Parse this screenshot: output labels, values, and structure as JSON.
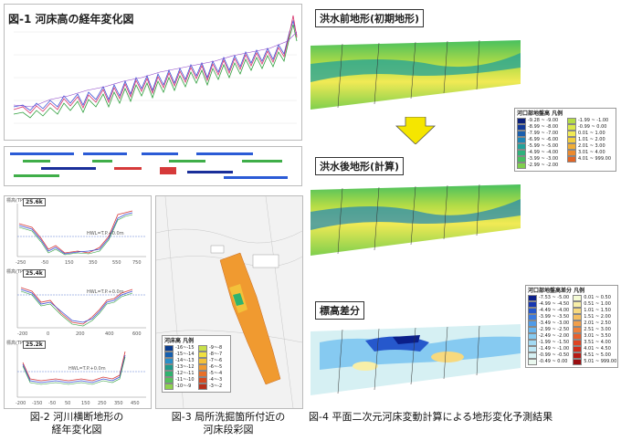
{
  "fig1": {
    "title": "図-1 河床高の経年変化図"
  },
  "fig2": {
    "caption_line1": "図-2 河川横断地形の",
    "caption_line2": "経年変化図",
    "sections": [
      {
        "label": "25.6k",
        "ylabel": "標高(TPm)",
        "water": "HWL=T.P.+0.0m",
        "xticks": [
          "-250",
          "-50",
          "150",
          "350",
          "550",
          "750"
        ]
      },
      {
        "label": "25.4k",
        "ylabel": "標高(TPm)",
        "water": "HWL=T.P.+0.0m",
        "xticks": [
          "-200",
          "0",
          "200",
          "400",
          "600"
        ]
      },
      {
        "label": "25.2k",
        "ylabel": "標高(TPm)",
        "water": "HWL=T.P.+0.0m",
        "xticks": [
          "-200",
          "-150",
          "-50",
          "50",
          "150",
          "250",
          "350",
          "450"
        ]
      }
    ]
  },
  "fig3": {
    "caption_line1": "図-3 局所洗掘箇所付近の",
    "caption_line2": "河床段彩図",
    "legend_title": "河床高 凡例",
    "colors": [
      "#0a3d8f",
      "#1560b0",
      "#2a8fc8",
      "#1f9a8a",
      "#2fb36f",
      "#56c15a",
      "#8fd14f",
      "#c8e04a",
      "#f0e040",
      "#f3c13a",
      "#f09a30",
      "#e87028",
      "#d64a20",
      "#b8301a"
    ],
    "labels": [
      "-16~-15",
      "-15~-14",
      "-14~-13",
      "-13~-12",
      "-12~-11",
      "-11~-10",
      "-10~-9",
      "-9~-8",
      "-8~-7",
      "-7~-6",
      "-6~-5",
      "-5~-4",
      "-4~-3",
      "-3~-2"
    ]
  },
  "fig4": {
    "caption": "図-4 平面二次元河床変動計算による地形変化予測結果",
    "top_label": "洪水前地形(初期地形)",
    "mid_label": "洪水後地形(計算)",
    "bottom_label": "標高差分",
    "legend1": {
      "title": "河口部地盤高 凡例",
      "items": [
        {
          "label": "-9.28 ~ -9.00",
          "color": "#0b1f7a"
        },
        {
          "label": "-8.99 ~ -8.00",
          "color": "#123a9a"
        },
        {
          "label": "-7.99 ~ -7.00",
          "color": "#1a5fae"
        },
        {
          "label": "-6.99 ~ -6.00",
          "color": "#1f86b6"
        },
        {
          "label": "-5.99 ~ -5.00",
          "color": "#22a29a"
        },
        {
          "label": "-4.99 ~ -4.00",
          "color": "#2fb27c"
        },
        {
          "label": "-3.99 ~ -3.00",
          "color": "#48c05e"
        },
        {
          "label": "-2.99 ~ -2.00",
          "color": "#7fcf4d"
        },
        {
          "label": "-1.99 ~ -1.00",
          "color": "#b4dc46"
        },
        {
          "label": "-0.99 ~ 0.00",
          "color": "#dbe84a"
        },
        {
          "label": "0.01 ~ 1.00",
          "color": "#f1ea55"
        },
        {
          "label": "1.01 ~ 2.00",
          "color": "#f3cf3e"
        },
        {
          "label": "2.01 ~ 3.00",
          "color": "#f1ad36"
        },
        {
          "label": "3.01 ~ 4.00",
          "color": "#ec8a2e"
        },
        {
          "label": "4.01 ~ 999.00",
          "color": "#e26526"
        }
      ]
    },
    "legend2": {
      "title": "河口部地盤高差分 凡例",
      "items": [
        {
          "label": "-7.53 ~ -5.00",
          "color": "#0b1f8a"
        },
        {
          "label": "-4.99 ~ -4.50",
          "color": "#1737b0"
        },
        {
          "label": "-4.49 ~ -4.00",
          "color": "#2658cc"
        },
        {
          "label": "-3.99 ~ -3.50",
          "color": "#3b7be0"
        },
        {
          "label": "-3.49 ~ -3.00",
          "color": "#4f9be8"
        },
        {
          "label": "-2.99 ~ -2.50",
          "color": "#69b6ee"
        },
        {
          "label": "-2.49 ~ -2.00",
          "color": "#86caf1"
        },
        {
          "label": "-1.99 ~ -1.50",
          "color": "#a3daf3"
        },
        {
          "label": "-1.49 ~ -1.00",
          "color": "#bde6f4"
        },
        {
          "label": "-0.99 ~ -0.50",
          "color": "#d6f0f3"
        },
        {
          "label": "-0.49 ~ 0.00",
          "color": "#eaf8ef"
        },
        {
          "label": "0.01 ~ 0.50",
          "color": "#f5fbd5"
        },
        {
          "label": "0.51 ~ 1.00",
          "color": "#f8efa8"
        },
        {
          "label": "1.01 ~ 1.50",
          "color": "#f7d97e"
        },
        {
          "label": "1.51 ~ 2.00",
          "color": "#f5bf60"
        },
        {
          "label": "2.01 ~ 2.50",
          "color": "#f29f4a"
        },
        {
          "label": "2.51 ~ 3.00",
          "color": "#ee803a"
        },
        {
          "label": "3.01 ~ 3.50",
          "color": "#e8602c"
        },
        {
          "label": "3.51 ~ 4.00",
          "color": "#de4422"
        },
        {
          "label": "4.01 ~ 4.50",
          "color": "#ce2c1a"
        },
        {
          "label": "4.51 ~ 5.00",
          "color": "#b81a14"
        },
        {
          "label": "5.01 ~ 999.00",
          "color": "#9a0e10"
        }
      ]
    }
  }
}
